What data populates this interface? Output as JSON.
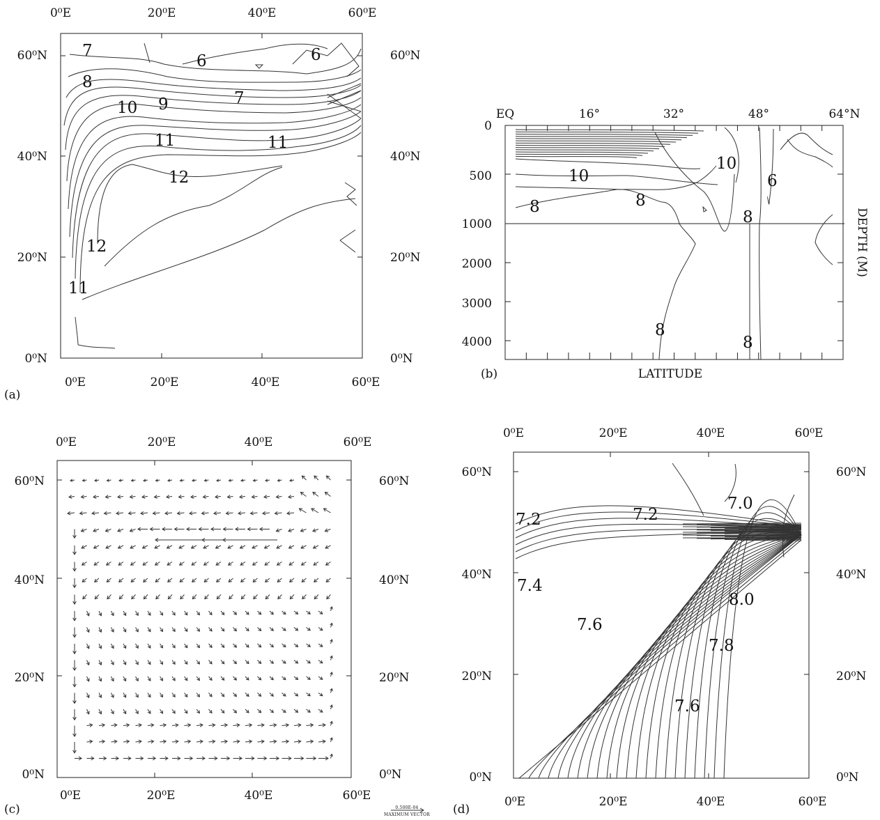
{
  "panels": {
    "a": {
      "letter": "(a)",
      "lon_ticks": [
        "0⁰E",
        "20⁰E",
        "40⁰E",
        "60⁰E"
      ],
      "lat_ticks": [
        "0⁰N",
        "20⁰N",
        "40⁰N",
        "60⁰N"
      ],
      "contour_labels": [
        "6",
        "6",
        "7",
        "7",
        "8",
        "9",
        "10",
        "11",
        "11",
        "12",
        "12",
        "11"
      ]
    },
    "b": {
      "letter": "(b)",
      "lat_ticks": [
        "EQ",
        "16°",
        "32°",
        "48°",
        "64°N"
      ],
      "depth_ticks": [
        "0",
        "500",
        "1000",
        "2000",
        "3000",
        "4000"
      ],
      "xlabel": "LATITUDE",
      "ylabel": "DEPTH (M)",
      "contour_labels": [
        "10",
        "10",
        "8",
        "8",
        "8",
        "6",
        "8",
        "8"
      ]
    },
    "c": {
      "letter": "(c)",
      "lon_ticks": [
        "0⁰E",
        "20⁰E",
        "40⁰E",
        "60⁰E"
      ],
      "lat_ticks": [
        "0⁰N",
        "20⁰N",
        "40⁰N",
        "60⁰N"
      ],
      "vector_key_value": "0.500E-04",
      "vector_key_label": "MAXIMUM VECTOR"
    },
    "d": {
      "letter": "(d)",
      "lon_ticks": [
        "0⁰E",
        "20⁰E",
        "40⁰E",
        "60⁰E"
      ],
      "lat_ticks": [
        "0⁰N",
        "20⁰N",
        "40⁰N",
        "60⁰N"
      ],
      "contour_labels": [
        "7.0",
        "7.2",
        "7.2",
        "7.4",
        "7.6",
        "7.8",
        "8.0",
        "7.6"
      ]
    }
  },
  "chart_data": [
    {
      "type": "contour",
      "panel": "a",
      "x_range": [
        0,
        60
      ],
      "y_range": [
        0,
        64
      ],
      "levels": [
        6,
        7,
        8,
        9,
        10,
        11,
        12
      ]
    },
    {
      "type": "contour",
      "panel": "b",
      "x_range": [
        0,
        64
      ],
      "y_range": [
        0,
        4400
      ],
      "levels": [
        6,
        8,
        10
      ]
    },
    {
      "type": "vector",
      "panel": "c",
      "x_range": [
        0,
        60
      ],
      "y_range": [
        0,
        64
      ],
      "max_vector": "0.500E-04"
    },
    {
      "type": "contour",
      "panel": "d",
      "x_range": [
        0,
        60
      ],
      "y_range": [
        0,
        64
      ],
      "levels": [
        7.0,
        7.2,
        7.4,
        7.6,
        7.8,
        8.0
      ]
    }
  ]
}
